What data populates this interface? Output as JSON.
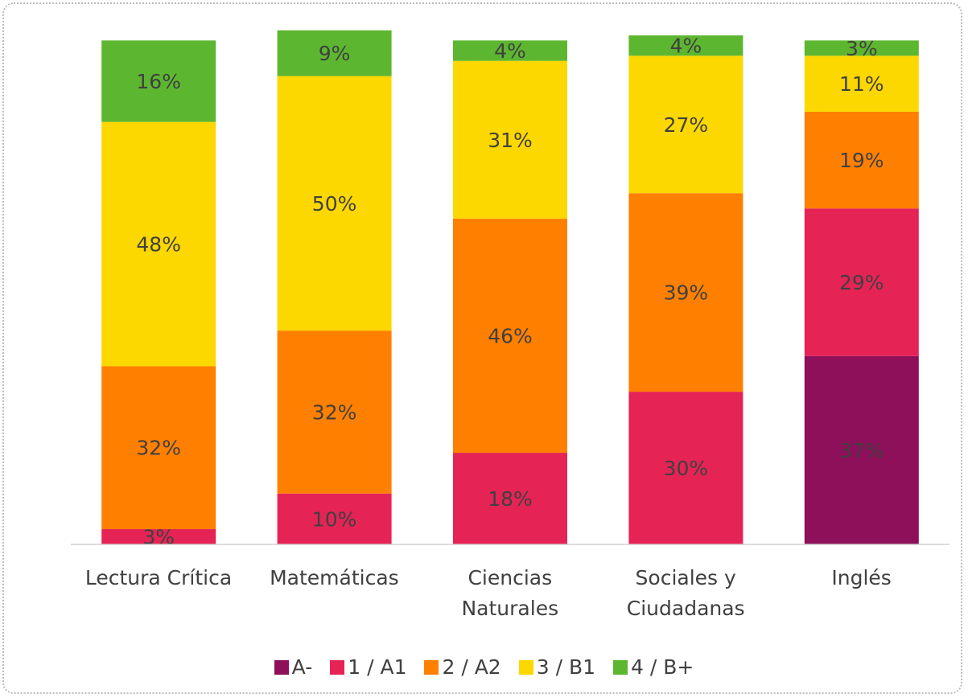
{
  "chart_data": {
    "type": "stacked_bar",
    "categories": [
      "Lectura Crítica",
      "Matemáticas",
      "Ciencias Naturales",
      "Sociales y Ciudadanas",
      "Inglés"
    ],
    "ylim": [
      0,
      100
    ],
    "series": [
      {
        "name": "A-",
        "color": "#8e0f5a",
        "values": [
          null,
          null,
          null,
          null,
          37
        ],
        "value_labels": [
          null,
          null,
          null,
          null,
          "37%"
        ]
      },
      {
        "name": "1 / A1",
        "color": "#e62355",
        "values": [
          3,
          10,
          18,
          30,
          29
        ],
        "value_labels": [
          "3%",
          "10%",
          "18%",
          "30%",
          "29%"
        ]
      },
      {
        "name": "2 / A2",
        "color": "#ff8000",
        "values": [
          32,
          32,
          46,
          39,
          19
        ],
        "value_labels": [
          "32%",
          "32%",
          "46%",
          "39%",
          "19%"
        ]
      },
      {
        "name": "3 / B1",
        "color": "#fcd800",
        "values": [
          48,
          50,
          31,
          27,
          11
        ],
        "value_labels": [
          "48%",
          "50%",
          "31%",
          "27%",
          "11%"
        ]
      },
      {
        "name": "4 / B+",
        "color": "#5db630",
        "values": [
          16,
          9,
          4,
          4,
          3
        ],
        "value_labels": [
          "16%",
          "9%",
          "4%",
          "4%",
          "3%"
        ]
      }
    ],
    "legend": "bottom"
  }
}
